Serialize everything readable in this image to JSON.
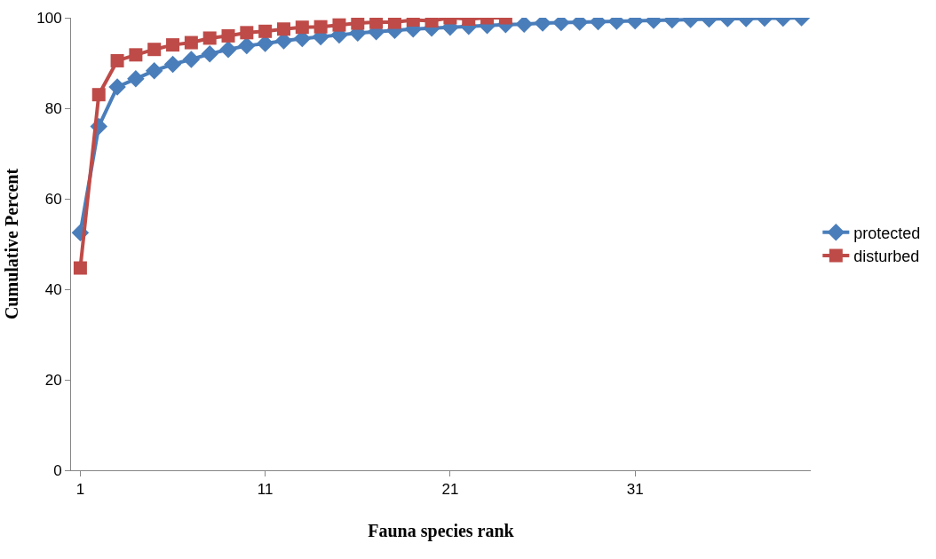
{
  "chart_data": {
    "type": "line",
    "xlabel": "Fauna species rank",
    "ylabel": "Cumulative Percent",
    "categories": [
      "1",
      null,
      null,
      null,
      null,
      null,
      null,
      null,
      null,
      null,
      "11",
      null,
      null,
      null,
      null,
      null,
      null,
      null,
      null,
      null,
      "21",
      null,
      null,
      null,
      null,
      null,
      null,
      null,
      null,
      null,
      "31",
      null,
      null,
      null,
      null,
      null,
      null,
      null,
      null,
      null
    ],
    "series": [
      {
        "name": "protected",
        "color": "#4a7ebb",
        "marker": "diamond",
        "values": [
          52.5,
          76,
          84.7,
          86.5,
          88.3,
          89.7,
          90.8,
          92,
          93,
          93.8,
          94.3,
          94.9,
          95.4,
          95.8,
          96.2,
          96.6,
          96.9,
          97.2,
          97.5,
          97.7,
          97.9,
          98.1,
          98.3,
          98.5,
          98.6,
          98.8,
          98.9,
          99,
          99.1,
          99.2,
          99.3,
          99.4,
          99.5,
          99.6,
          99.7,
          99.8,
          99.8,
          99.9,
          99.9,
          100
        ]
      },
      {
        "name": "disturbed",
        "color": "#be4b48",
        "marker": "square",
        "values": [
          44.7,
          83,
          90.5,
          91.8,
          93,
          94,
          94.5,
          95.5,
          96,
          96.7,
          97,
          97.5,
          97.9,
          98,
          98.4,
          98.8,
          99,
          99,
          99.5,
          99.3,
          100,
          99.7,
          100,
          100,
          null,
          null,
          null,
          null,
          null,
          null,
          null,
          null,
          null,
          null,
          null,
          null,
          null,
          null,
          null,
          null
        ]
      }
    ],
    "ylim": [
      0,
      100
    ],
    "yticks": [
      0,
      20,
      40,
      60,
      80,
      100
    ],
    "legend": "right",
    "line_style": "solid"
  }
}
